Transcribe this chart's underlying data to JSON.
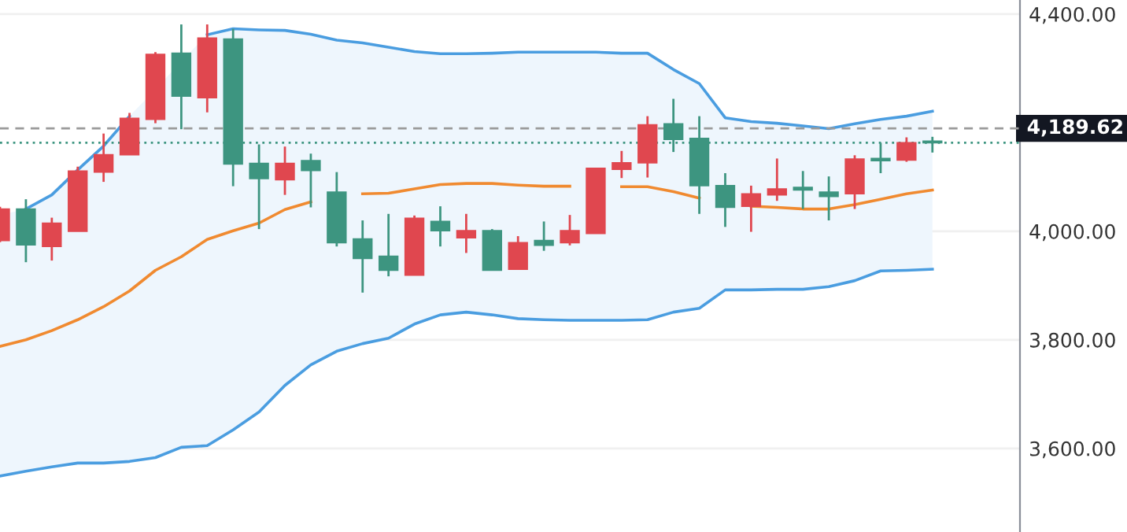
{
  "chart_data": {
    "type": "candlestick",
    "categories": [
      null,
      null,
      null,
      null,
      null,
      null,
      null,
      null,
      null,
      null,
      null,
      null,
      null,
      null,
      null,
      null,
      null,
      null,
      null,
      null,
      null,
      null,
      null,
      null,
      null,
      null,
      null,
      null,
      null,
      null,
      null,
      null,
      null,
      null,
      null,
      null,
      null
    ],
    "ohlc": [
      [
        3983,
        4045,
        3980,
        4041
      ],
      [
        4041,
        4059,
        3943,
        3975
      ],
      [
        3972,
        4025,
        3946,
        4015
      ],
      [
        4000,
        4119,
        4000,
        4111
      ],
      [
        4109,
        4180,
        4091,
        4141
      ],
      [
        4141,
        4218,
        4141,
        4208
      ],
      [
        4206,
        4330,
        4199,
        4326
      ],
      [
        4328,
        4381,
        4188,
        4249
      ],
      [
        4246,
        4381,
        4219,
        4356
      ],
      [
        4354,
        4373,
        4083,
        4124
      ],
      [
        4125,
        4160,
        4004,
        4097
      ],
      [
        4095,
        4156,
        4067,
        4125
      ],
      [
        4130,
        4143,
        4044,
        4112
      ],
      [
        4072,
        4109,
        3972,
        3979
      ],
      [
        3986,
        4020,
        3887,
        3950
      ],
      [
        3954,
        4032,
        3917,
        3928
      ],
      [
        3919,
        4029,
        3919,
        4024
      ],
      [
        4018,
        4046,
        3972,
        4001
      ],
      [
        3988,
        4032,
        3960,
        4001
      ],
      [
        4001,
        4004,
        3928,
        3928
      ],
      [
        3930,
        3991,
        3930,
        3979
      ],
      [
        3983,
        4018,
        3964,
        3974
      ],
      [
        3979,
        4030,
        3974,
        4001
      ],
      [
        3996,
        4116,
        3996,
        4116
      ],
      [
        4114,
        4148,
        4098,
        4126
      ],
      [
        4126,
        4212,
        4099,
        4196
      ],
      [
        4198,
        4244,
        4146,
        4169
      ],
      [
        4171,
        4212,
        4032,
        4084
      ],
      [
        4084,
        4107,
        4008,
        4044
      ],
      [
        4046,
        4084,
        3999,
        4069
      ],
      [
        4067,
        4134,
        4056,
        4078
      ],
      [
        4081,
        4111,
        4041,
        4076
      ],
      [
        4072,
        4101,
        4020,
        4064
      ],
      [
        4069,
        4140,
        4041,
        4133
      ],
      [
        4134,
        4163,
        4107,
        4130
      ],
      [
        4131,
        4173,
        4128,
        4163
      ],
      [
        4166,
        4174,
        4145,
        4163
      ]
    ],
    "colors": [
      "#e0474f",
      "#3d9580",
      "#e0474f",
      "#e0474f",
      "#e0474f",
      "#e0474f",
      "#e0474f",
      "#3d9580",
      "#e0474f",
      "#3d9580",
      "#3d9580",
      "#e0474f",
      "#3d9580",
      "#3d9580",
      "#3d9580",
      "#3d9580",
      "#e0474f",
      "#3d9580",
      "#e0474f",
      "#3d9580",
      "#e0474f",
      "#3d9580",
      "#e0474f",
      "#e0474f",
      "#e0474f",
      "#e0474f",
      "#3d9580",
      "#3d9580",
      "#3d9580",
      "#e0474f",
      "#e0474f",
      "#3d9580",
      "#3d9580",
      "#e0474f",
      "#3d9580",
      "#e0474f",
      "#3d9580"
    ],
    "series": [
      {
        "type": "line",
        "color": "#f08a30",
        "values": [
          3788,
          3800,
          3817,
          3837,
          3861,
          3890,
          3928,
          3953,
          3985,
          4001,
          4015,
          4040,
          4054,
          null,
          4069,
          4070,
          4078,
          4086,
          4088,
          4088,
          4085,
          4083,
          4083,
          null,
          4082,
          4082,
          4073,
          4061,
          null,
          4046,
          4044,
          4041,
          4041,
          4049,
          4059,
          4069,
          4076
        ],
        "lower": [
          3549,
          3558,
          3566,
          3573,
          3573,
          3576,
          3583,
          3602,
          3605,
          3634,
          3667,
          3716,
          3754,
          3779,
          3793,
          3803,
          3829,
          3846,
          3851,
          3846,
          3839,
          3837,
          3836,
          3836,
          3836,
          3837,
          3851,
          3858,
          3892,
          3892,
          3893,
          3893,
          3898,
          3909,
          3927,
          3928,
          3930
        ],
        "upper": [
          4030,
          4041,
          4067,
          4113,
          4157,
          4212,
          4261,
          4313,
          4362,
          4373,
          4371,
          4370,
          4363,
          4352,
          4347,
          4339,
          4331,
          4327,
          4327,
          4328,
          4330,
          4330,
          4330,
          4330,
          4328,
          4328,
          4298,
          4272,
          4209,
          4202,
          4199,
          4194,
          4189,
          4198,
          4206,
          4212,
          4221
        ]
      },
      {
        "type": "line",
        "color": "#4a9de0",
        "values": [
          null,
          4041,
          4067,
          4113,
          4157,
          4212,
          null,
          null,
          4362,
          4373,
          4371,
          4370,
          4363,
          4352,
          4347,
          4339,
          4331,
          4327,
          4327,
          4328,
          4330,
          4330,
          4330,
          4330,
          4328,
          4328,
          4298,
          4272,
          4209,
          4202,
          4199,
          4194,
          4189,
          4198,
          4206,
          4212,
          4221
        ]
      },
      {
        "type": "line",
        "color": "#4a9de0",
        "values": [
          3549,
          3558,
          3566,
          3573,
          3573,
          3576,
          3583,
          3602,
          3605,
          3634,
          3667,
          3716,
          3754,
          3779,
          3793,
          3803,
          3829,
          3846,
          3851,
          3846,
          3839,
          3837,
          3836,
          3836,
          3836,
          3837,
          3851,
          3858,
          3892,
          3892,
          3893,
          3893,
          3898,
          3909,
          3927,
          3928,
          3930
        ]
      }
    ],
    "ylim": [
      3446,
      4426
    ],
    "yticks": [
      {
        "value": 3600,
        "label": "3,600.00"
      },
      {
        "value": 3800,
        "label": "3,800.00"
      },
      {
        "value": 4000,
        "label": "4,000.00"
      },
      {
        "value": 4400,
        "label": "4,400.00"
      }
    ],
    "ref_lines": [
      {
        "axis": "y",
        "value": 4189.62,
        "label": "4,189.62",
        "color": "#9a9a9a",
        "line_style": "dashed"
      },
      {
        "axis": "y",
        "value": 4163,
        "color": "#3d9580",
        "line_style": "dotted"
      }
    ],
    "grid": "y"
  }
}
